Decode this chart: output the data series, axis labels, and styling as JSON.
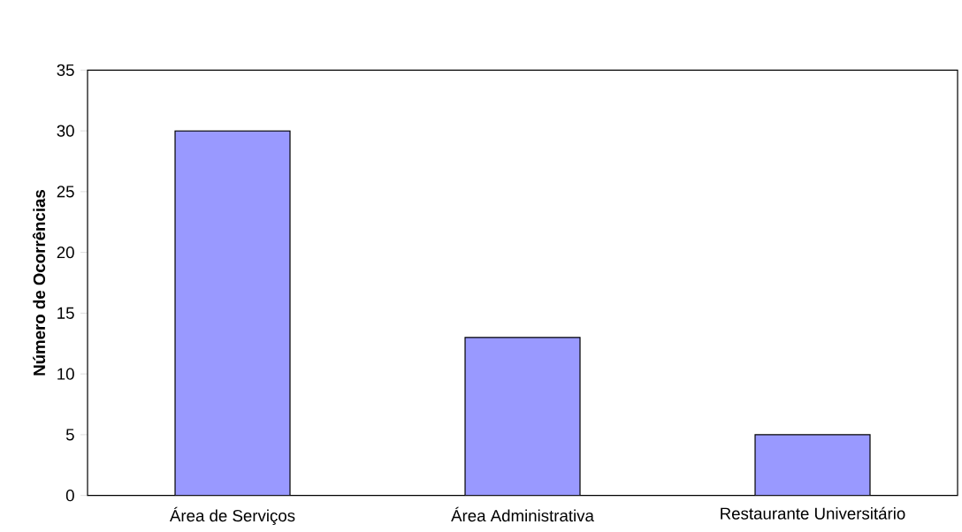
{
  "chart_data": {
    "type": "bar",
    "ylabel": "**Número de Ocorrências**",
    "categories": [
      "Área de Serviços",
      "Área Administrativa",
      "Restaurante Universitário"
    ],
    "values": [
      30,
      13,
      5
    ],
    "color": "#9999ff",
    "ylim": [
      0,
      35
    ],
    "yticks": [
      0,
      5,
      10,
      15,
      20,
      25,
      30,
      35
    ]
  }
}
